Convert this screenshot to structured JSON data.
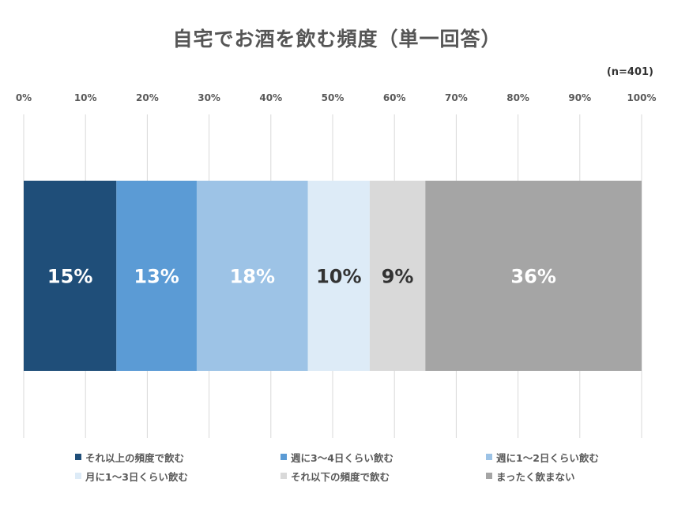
{
  "chart_data": {
    "type": "bar",
    "orientation": "horizontal-stacked-100",
    "title": "自宅でお酒を飲む頻度（単一回答）",
    "note": "(n=401)",
    "xlim": [
      0,
      100
    ],
    "x_ticks": [
      "0%",
      "10%",
      "20%",
      "30%",
      "40%",
      "50%",
      "60%",
      "70%",
      "80%",
      "90%",
      "100%"
    ],
    "grid": true,
    "legend_position": "bottom",
    "series": [
      {
        "name": "それ以上の頻度で飲む",
        "value": 15,
        "label": "15%",
        "color": "#1f4e79",
        "label_color": "#ffffff"
      },
      {
        "name": "週に3〜4日くらい飲む",
        "value": 13,
        "label": "13%",
        "color": "#5b9bd5",
        "label_color": "#ffffff"
      },
      {
        "name": "週に1〜2日くらい飲む",
        "value": 18,
        "label": "18%",
        "color": "#9dc3e6",
        "label_color": "#ffffff"
      },
      {
        "name": "月に1〜3日くらい飲む",
        "value": 10,
        "label": "10%",
        "color": "#ddebf7",
        "label_color": "#333333"
      },
      {
        "name": "それ以下の頻度で飲む",
        "value": 9,
        "label": "9%",
        "color": "#d9d9d9",
        "label_color": "#333333"
      },
      {
        "name": "まったく飲まない",
        "value": 36,
        "label": "36%",
        "color": "#a5a5a5",
        "label_color": "#ffffff"
      }
    ]
  }
}
